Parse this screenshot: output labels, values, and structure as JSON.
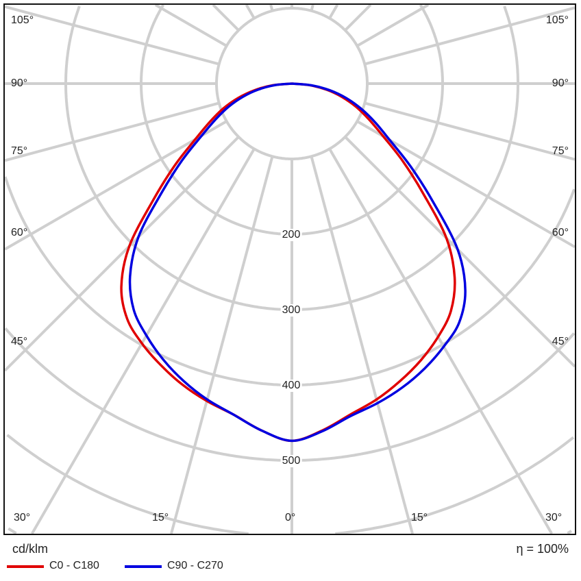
{
  "chart_data": {
    "type": "polar",
    "unit_label": "cd/klm",
    "efficiency_label": "η = 100%",
    "radial_ticks": [
      200,
      300,
      400,
      500
    ],
    "radial_range": [
      0,
      700
    ],
    "angle_labels_left": [
      "105°",
      "90°",
      "75°",
      "60°",
      "45°"
    ],
    "angle_labels_right": [
      "105°",
      "90°",
      "75°",
      "60°",
      "45°"
    ],
    "angle_labels_bottom": [
      "30°",
      "15°",
      "0°",
      "15°",
      "30°"
    ],
    "angles_deg": [
      0,
      5,
      10,
      15,
      20,
      25,
      30,
      35,
      40,
      45,
      50,
      55,
      60,
      65,
      70,
      75,
      80,
      85,
      90
    ],
    "series": [
      {
        "name": "C0 - C180",
        "color": "#e00000",
        "left_values": [
          474,
          462,
          446,
          436,
          425,
          412,
          398,
          381,
          352,
          305,
          240,
          190,
          148,
          120,
          97,
          74,
          50,
          25,
          0
        ],
        "right_values": [
          474,
          462,
          446,
          434,
          420,
          405,
          388,
          368,
          336,
          290,
          228,
          180,
          140,
          113,
          91,
          69,
          47,
          23,
          0
        ]
      },
      {
        "name": "C90 - C270",
        "color": "#0000e0",
        "left_values": [
          474,
          462,
          446,
          434,
          420,
          404,
          386,
          366,
          334,
          288,
          226,
          178,
          138,
          111,
          89,
          67,
          45,
          22,
          0
        ],
        "right_values": [
          474,
          463,
          448,
          439,
          429,
          417,
          403,
          387,
          358,
          311,
          245,
          193,
          150,
          122,
          98,
          75,
          51,
          26,
          0
        ]
      }
    ]
  }
}
